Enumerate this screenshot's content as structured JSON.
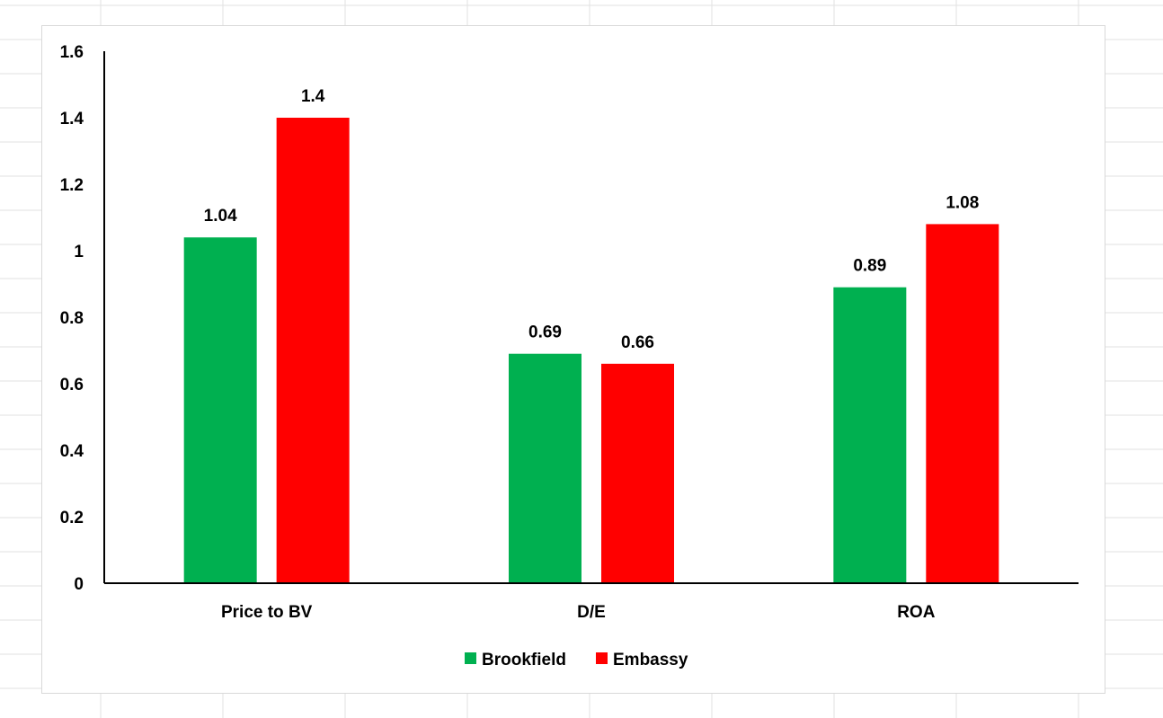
{
  "chart_data": {
    "type": "bar",
    "title": "",
    "xlabel": "",
    "ylabel": "",
    "categories": [
      "Price to BV",
      "D/E",
      "ROA"
    ],
    "series": [
      {
        "name": "Brookfield",
        "color": "#00b050",
        "values": [
          1.04,
          0.69,
          0.89
        ]
      },
      {
        "name": "Embassy",
        "color": "#ff0000",
        "values": [
          1.4,
          0.66,
          1.08
        ]
      }
    ],
    "ylim": [
      0,
      1.6
    ],
    "yticks": [
      0,
      0.2,
      0.4,
      0.6,
      0.8,
      1,
      1.2,
      1.4,
      1.6
    ],
    "ytick_labels": [
      "0",
      "0.2",
      "0.4",
      "0.6",
      "0.8",
      "1",
      "1.2",
      "1.4",
      "1.6"
    ],
    "data_labels": [
      [
        "1.04",
        "0.69",
        "0.89"
      ],
      [
        "1.4",
        "0.66",
        "1.08"
      ]
    ],
    "grid": false,
    "legend": {
      "position": "bottom"
    }
  }
}
